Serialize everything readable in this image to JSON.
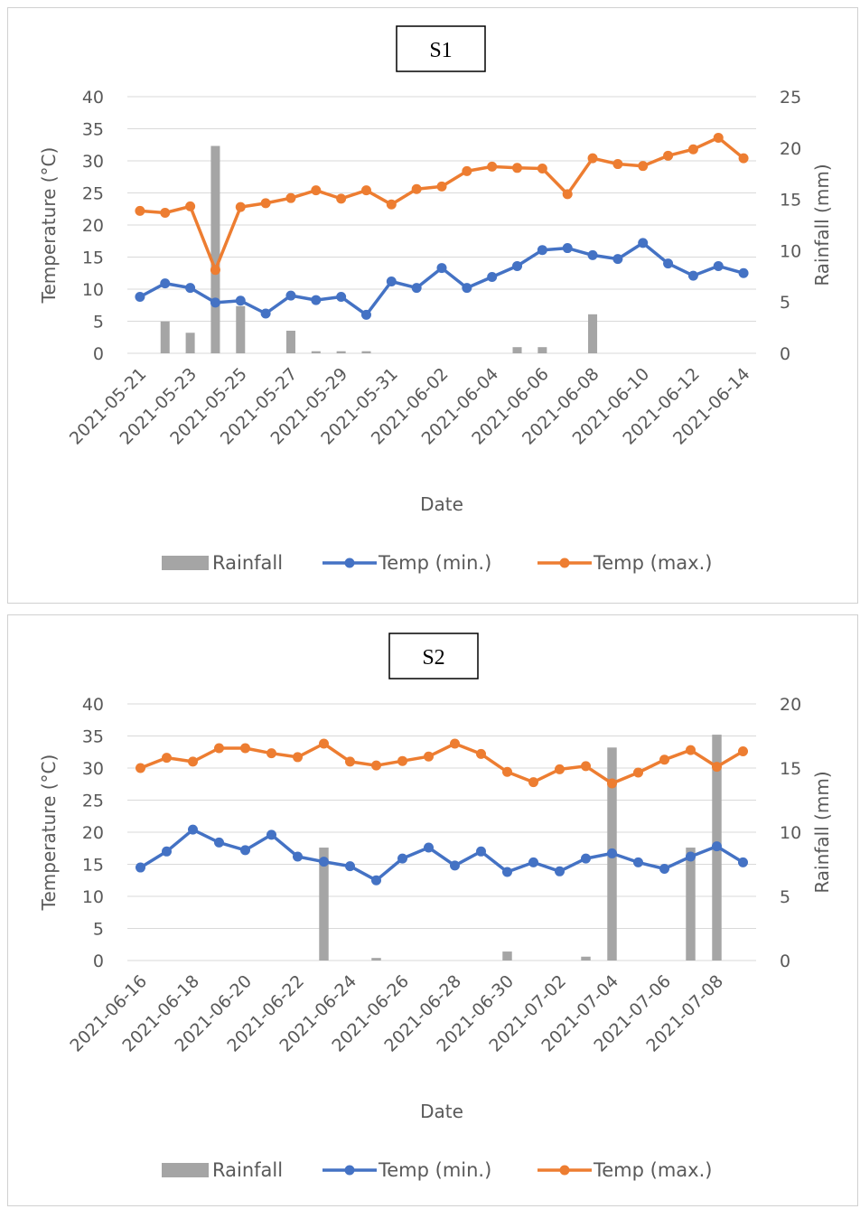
{
  "chart_data": [
    {
      "type": "bar+line",
      "title": "S1",
      "xlabel": "Date",
      "ylabel": "Temperature (°C)",
      "y2label": "Rainfall (mm)",
      "ylim": [
        0,
        40
      ],
      "yticks": [
        0,
        5,
        10,
        15,
        20,
        25,
        30,
        35,
        40
      ],
      "y2lim": [
        0,
        25
      ],
      "y2ticks": [
        0,
        5,
        10,
        15,
        20,
        25
      ],
      "x": [
        "2021-05-21",
        "2021-05-22",
        "2021-05-23",
        "2021-05-24",
        "2021-05-25",
        "2021-05-26",
        "2021-05-27",
        "2021-05-28",
        "2021-05-29",
        "2021-05-30",
        "2021-05-31",
        "2021-06-01",
        "2021-06-02",
        "2021-06-03",
        "2021-06-04",
        "2021-06-05",
        "2021-06-06",
        "2021-06-07",
        "2021-06-08",
        "2021-06-09",
        "2021-06-10",
        "2021-06-11",
        "2021-06-12",
        "2021-06-13",
        "2021-06-14"
      ],
      "xtick_labels": [
        "2021-05-21",
        "2021-05-23",
        "2021-05-25",
        "2021-05-27",
        "2021-05-29",
        "2021-05-31",
        "2021-06-02",
        "2021-06-04",
        "2021-06-06",
        "2021-06-08",
        "2021-06-10",
        "2021-06-12",
        "2021-06-14"
      ],
      "legend_position": "bottom",
      "series": [
        {
          "name": "Rainfall",
          "kind": "bar",
          "axis": "right",
          "color": "#a5a5a5",
          "values": [
            0,
            3.1,
            2.0,
            20.2,
            4.6,
            0,
            2.2,
            0.2,
            0.2,
            0.2,
            0,
            0,
            0,
            0,
            0,
            0.6,
            0.6,
            0,
            3.8,
            0,
            0,
            0,
            0,
            0,
            0
          ]
        },
        {
          "name": "Temp (min.)",
          "kind": "line",
          "axis": "left",
          "color": "#4472c4",
          "values": [
            8.8,
            10.9,
            10.2,
            7.9,
            8.2,
            6.2,
            9.0,
            8.3,
            8.8,
            6.0,
            11.2,
            10.2,
            13.3,
            10.2,
            11.9,
            13.6,
            16.1,
            16.4,
            15.3,
            14.7,
            17.2,
            14.0,
            12.1,
            13.6,
            12.5
          ]
        },
        {
          "name": "Temp (max.)",
          "kind": "line",
          "axis": "left",
          "color": "#ed7d31",
          "values": [
            22.2,
            21.9,
            22.9,
            13.0,
            22.8,
            23.4,
            24.2,
            25.4,
            24.1,
            25.4,
            23.2,
            25.6,
            26.0,
            28.4,
            29.1,
            28.9,
            28.8,
            24.8,
            30.4,
            29.5,
            29.2,
            30.8,
            31.8,
            33.6,
            30.4
          ]
        }
      ]
    },
    {
      "type": "bar+line",
      "title": "S2",
      "xlabel": "Date",
      "ylabel": "Temperature (°C)",
      "y2label": "Rainfall (mm)",
      "ylim": [
        0,
        40
      ],
      "yticks": [
        0,
        5,
        10,
        15,
        20,
        25,
        30,
        35,
        40
      ],
      "y2lim": [
        0,
        20
      ],
      "y2ticks": [
        0,
        5,
        10,
        15,
        20
      ],
      "x": [
        "2021-06-16",
        "2021-06-17",
        "2021-06-18",
        "2021-06-19",
        "2021-06-20",
        "2021-06-21",
        "2021-06-22",
        "2021-06-23",
        "2021-06-24",
        "2021-06-25",
        "2021-06-26",
        "2021-06-27",
        "2021-06-28",
        "2021-06-29",
        "2021-06-30",
        "2021-07-01",
        "2021-07-02",
        "2021-07-03",
        "2021-07-04",
        "2021-07-05",
        "2021-07-06",
        "2021-07-07",
        "2021-07-08",
        "2021-07-09"
      ],
      "xtick_labels": [
        "2021-06-16",
        "2021-06-18",
        "2021-06-20",
        "2021-06-22",
        "2021-06-24",
        "2021-06-26",
        "2021-06-28",
        "2021-06-30",
        "2021-07-02",
        "2021-07-04",
        "2021-07-06",
        "2021-07-08"
      ],
      "legend_position": "bottom",
      "series": [
        {
          "name": "Rainfall",
          "kind": "bar",
          "axis": "right",
          "color": "#a5a5a5",
          "values": [
            0,
            0,
            0,
            0,
            0,
            0,
            0,
            8.8,
            0,
            0.2,
            0,
            0,
            0,
            0,
            0.7,
            0,
            0,
            0.3,
            16.6,
            0,
            0,
            8.8,
            17.6,
            0
          ]
        },
        {
          "name": "Temp (min.)",
          "kind": "line",
          "axis": "left",
          "color": "#4472c4",
          "values": [
            14.5,
            17.0,
            20.4,
            18.4,
            17.2,
            19.6,
            16.2,
            15.4,
            14.7,
            12.5,
            15.9,
            17.6,
            14.8,
            17.0,
            13.8,
            15.3,
            13.9,
            15.9,
            16.7,
            15.3,
            14.3,
            16.2,
            17.8,
            15.3
          ]
        },
        {
          "name": "Temp (max.)",
          "kind": "line",
          "axis": "left",
          "color": "#ed7d31",
          "values": [
            30.0,
            31.6,
            31.0,
            33.1,
            33.1,
            32.3,
            31.7,
            33.8,
            31.0,
            30.4,
            31.1,
            31.8,
            33.8,
            32.2,
            29.4,
            27.8,
            29.8,
            30.3,
            27.6,
            29.3,
            31.3,
            32.8,
            30.2,
            32.6
          ]
        }
      ]
    }
  ]
}
